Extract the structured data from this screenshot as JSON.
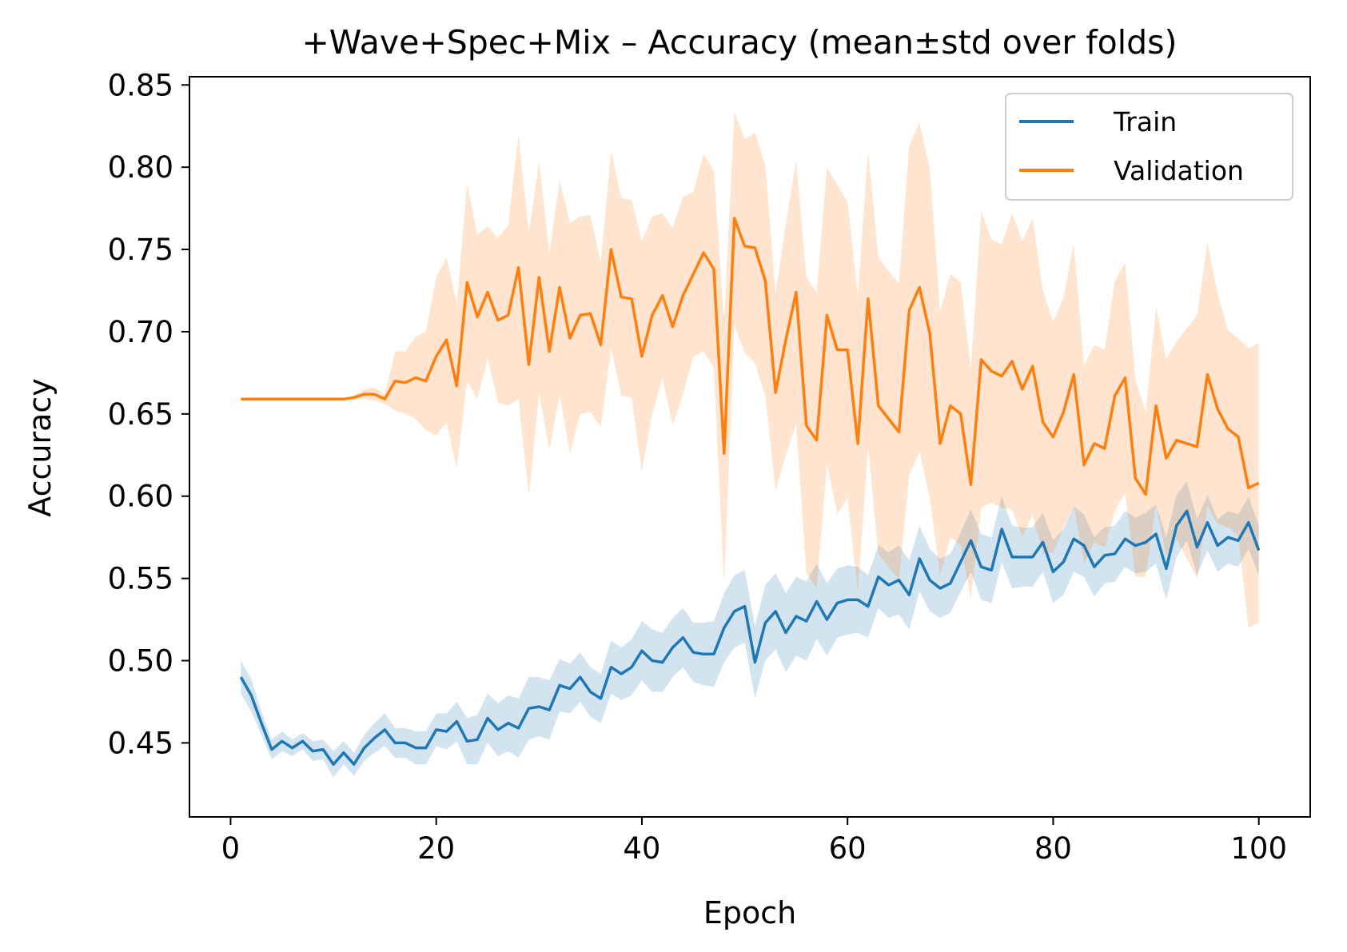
{
  "chart_data": {
    "type": "line",
    "title": "+Wave+Spec+Mix – Accuracy (mean±std over folds)",
    "xlabel": "Epoch",
    "ylabel": "Accuracy",
    "xlim": [
      -4,
      105
    ],
    "ylim": [
      0.405,
      0.855
    ],
    "xticks": [
      0,
      20,
      40,
      60,
      80,
      100
    ],
    "yticks": [
      0.45,
      0.5,
      0.55,
      0.6,
      0.65,
      0.7,
      0.75,
      0.8,
      0.85
    ],
    "xtick_labels": [
      "0",
      "20",
      "40",
      "60",
      "80",
      "100"
    ],
    "ytick_labels": [
      "0.45",
      "0.50",
      "0.55",
      "0.60",
      "0.65",
      "0.70",
      "0.75",
      "0.80",
      "0.85"
    ],
    "grid": false,
    "legend": "top-right",
    "x": [
      1,
      2,
      3,
      4,
      5,
      6,
      7,
      8,
      9,
      10,
      11,
      12,
      13,
      14,
      15,
      16,
      17,
      18,
      19,
      20,
      21,
      22,
      23,
      24,
      25,
      26,
      27,
      28,
      29,
      30,
      31,
      32,
      33,
      34,
      35,
      36,
      37,
      38,
      39,
      40,
      41,
      42,
      43,
      44,
      45,
      46,
      47,
      48,
      49,
      50,
      51,
      52,
      53,
      54,
      55,
      56,
      57,
      58,
      59,
      60,
      61,
      62,
      63,
      64,
      65,
      66,
      67,
      68,
      69,
      70,
      71,
      72,
      73,
      74,
      75,
      76,
      77,
      78,
      79,
      80,
      81,
      82,
      83,
      84,
      85,
      86,
      87,
      88,
      89,
      90,
      91,
      92,
      93,
      94,
      95,
      96,
      97,
      98,
      99,
      100
    ],
    "series": [
      {
        "name": "Train",
        "color": "#1f77b4",
        "band_color": "#1f77b4",
        "mean": [
          0.49,
          0.479,
          0.462,
          0.446,
          0.451,
          0.447,
          0.451,
          0.445,
          0.446,
          0.437,
          0.444,
          0.437,
          0.447,
          0.453,
          0.458,
          0.45,
          0.45,
          0.447,
          0.447,
          0.458,
          0.457,
          0.463,
          0.451,
          0.452,
          0.465,
          0.458,
          0.462,
          0.459,
          0.471,
          0.472,
          0.47,
          0.485,
          0.483,
          0.49,
          0.481,
          0.477,
          0.496,
          0.492,
          0.496,
          0.506,
          0.5,
          0.499,
          0.508,
          0.514,
          0.505,
          0.504,
          0.504,
          0.52,
          0.53,
          0.533,
          0.499,
          0.523,
          0.53,
          0.517,
          0.527,
          0.524,
          0.536,
          0.525,
          0.535,
          0.537,
          0.537,
          0.533,
          0.551,
          0.546,
          0.549,
          0.54,
          0.562,
          0.549,
          0.544,
          0.547,
          0.56,
          0.573,
          0.557,
          0.555,
          0.58,
          0.563,
          0.563,
          0.563,
          0.572,
          0.554,
          0.56,
          0.574,
          0.57,
          0.557,
          0.564,
          0.565,
          0.574,
          0.57,
          0.572,
          0.577,
          0.556,
          0.582,
          0.591,
          0.569,
          0.584,
          0.57,
          0.575,
          0.573,
          0.584,
          0.567
        ],
        "std": [
          0.01,
          0.01,
          0.007,
          0.006,
          0.006,
          0.005,
          0.005,
          0.006,
          0.006,
          0.008,
          0.007,
          0.007,
          0.008,
          0.009,
          0.01,
          0.009,
          0.009,
          0.01,
          0.01,
          0.01,
          0.011,
          0.012,
          0.014,
          0.015,
          0.015,
          0.016,
          0.017,
          0.018,
          0.019,
          0.018,
          0.018,
          0.016,
          0.015,
          0.015,
          0.015,
          0.015,
          0.016,
          0.016,
          0.017,
          0.018,
          0.019,
          0.018,
          0.018,
          0.018,
          0.018,
          0.019,
          0.02,
          0.021,
          0.022,
          0.022,
          0.022,
          0.023,
          0.023,
          0.024,
          0.024,
          0.024,
          0.023,
          0.022,
          0.021,
          0.021,
          0.02,
          0.019,
          0.019,
          0.02,
          0.021,
          0.021,
          0.02,
          0.019,
          0.018,
          0.018,
          0.018,
          0.019,
          0.02,
          0.02,
          0.02,
          0.019,
          0.018,
          0.018,
          0.018,
          0.019,
          0.02,
          0.02,
          0.019,
          0.018,
          0.017,
          0.017,
          0.017,
          0.017,
          0.018,
          0.018,
          0.019,
          0.019,
          0.018,
          0.017,
          0.017,
          0.016,
          0.016,
          0.016,
          0.016,
          0.015
        ]
      },
      {
        "name": "Validation",
        "color": "#ff7f0e",
        "band_color": "#ff7f0e",
        "mean": [
          0.659,
          0.659,
          0.659,
          0.659,
          0.659,
          0.659,
          0.659,
          0.659,
          0.659,
          0.659,
          0.659,
          0.66,
          0.662,
          0.662,
          0.659,
          0.67,
          0.669,
          0.672,
          0.67,
          0.685,
          0.695,
          0.667,
          0.73,
          0.709,
          0.724,
          0.707,
          0.71,
          0.739,
          0.68,
          0.733,
          0.688,
          0.727,
          0.696,
          0.71,
          0.711,
          0.692,
          0.75,
          0.721,
          0.72,
          0.685,
          0.71,
          0.722,
          0.703,
          0.722,
          0.735,
          0.748,
          0.738,
          0.626,
          0.769,
          0.752,
          0.751,
          0.731,
          0.663,
          0.695,
          0.724,
          0.643,
          0.634,
          0.71,
          0.689,
          0.689,
          0.632,
          0.72,
          0.655,
          0.647,
          0.639,
          0.713,
          0.727,
          0.699,
          0.632,
          0.655,
          0.65,
          0.607,
          0.683,
          0.676,
          0.673,
          0.682,
          0.665,
          0.679,
          0.645,
          0.636,
          0.651,
          0.674,
          0.619,
          0.632,
          0.629,
          0.661,
          0.672,
          0.611,
          0.601,
          0.655,
          0.623,
          0.634,
          0.632,
          0.63,
          0.674,
          0.653,
          0.641,
          0.636,
          0.605,
          0.608
        ],
        "std": [
          0.0,
          0.0,
          0.0,
          0.0,
          0.0,
          0.0,
          0.0,
          0.0,
          0.0,
          0.0,
          0.0,
          0.001,
          0.003,
          0.004,
          0.003,
          0.018,
          0.019,
          0.025,
          0.03,
          0.048,
          0.05,
          0.05,
          0.06,
          0.05,
          0.04,
          0.05,
          0.055,
          0.08,
          0.08,
          0.07,
          0.06,
          0.065,
          0.07,
          0.06,
          0.06,
          0.05,
          0.06,
          0.06,
          0.06,
          0.07,
          0.06,
          0.05,
          0.06,
          0.06,
          0.05,
          0.06,
          0.06,
          0.08,
          0.065,
          0.065,
          0.07,
          0.07,
          0.06,
          0.07,
          0.08,
          0.09,
          0.09,
          0.09,
          0.1,
          0.09,
          0.09,
          0.09,
          0.09,
          0.09,
          0.09,
          0.1,
          0.1,
          0.1,
          0.08,
          0.08,
          0.08,
          0.07,
          0.09,
          0.08,
          0.08,
          0.09,
          0.09,
          0.09,
          0.08,
          0.07,
          0.07,
          0.08,
          0.06,
          0.06,
          0.06,
          0.07,
          0.07,
          0.06,
          0.05,
          0.06,
          0.06,
          0.06,
          0.07,
          0.08,
          0.08,
          0.07,
          0.06,
          0.06,
          0.085,
          0.085
        ]
      }
    ]
  }
}
